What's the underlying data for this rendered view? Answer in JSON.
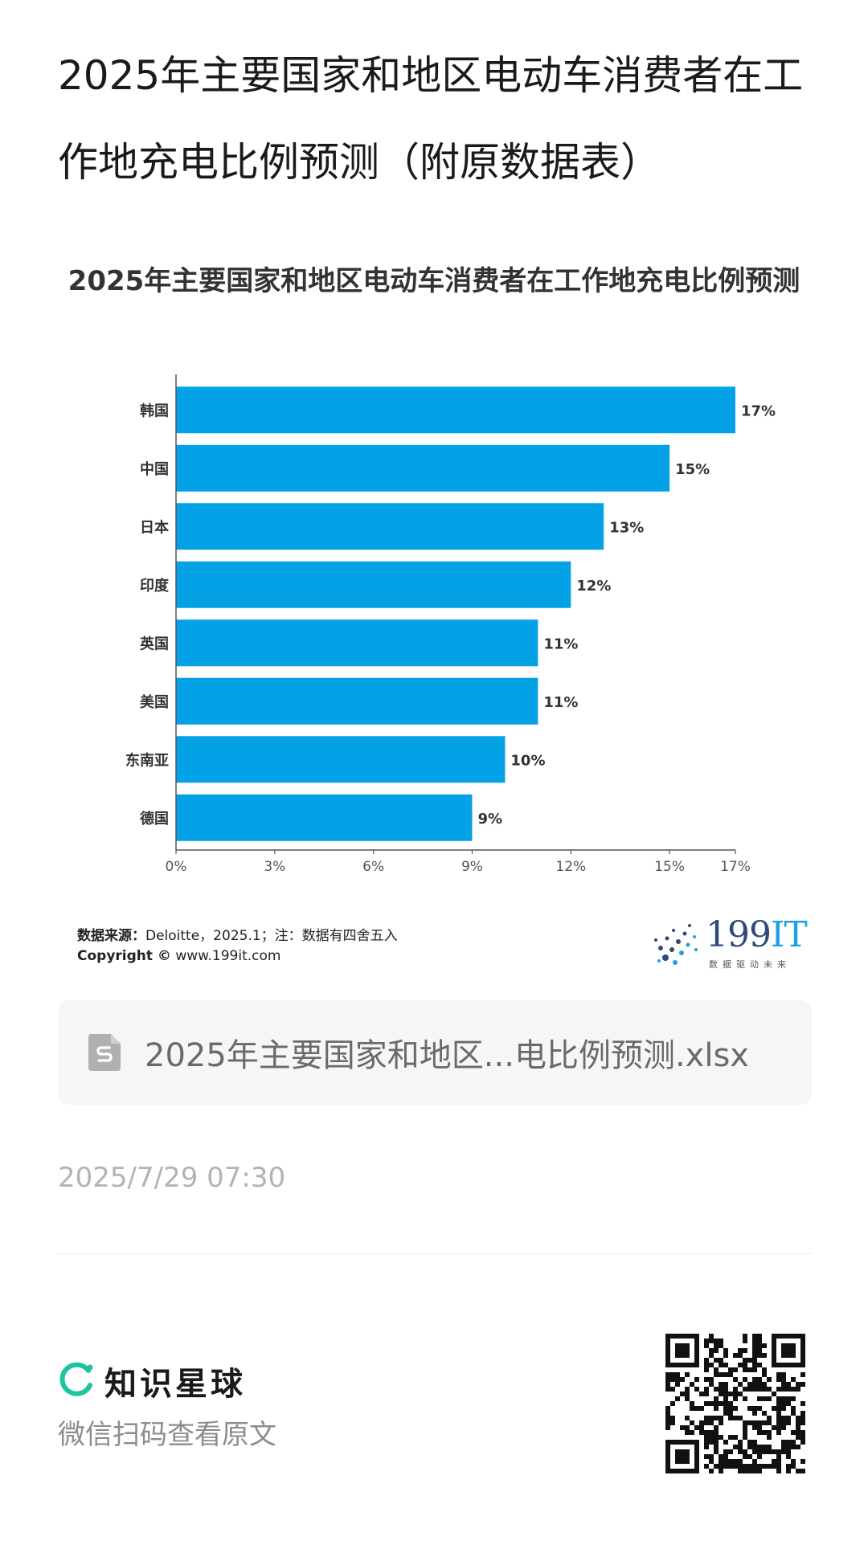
{
  "page": {
    "title": "2025年主要国家和地区电动车消费者在工作地充电比例预测（附原数据表）"
  },
  "chart_data": {
    "type": "bar",
    "orientation": "horizontal",
    "title": "2025年主要国家和地区电动车消费者在工作地充电比例预测",
    "categories": [
      "韩国",
      "中国",
      "日本",
      "印度",
      "英国",
      "美国",
      "东南亚",
      "德国"
    ],
    "values": [
      17,
      15,
      13,
      12,
      11,
      11,
      10,
      9
    ],
    "value_labels": [
      "17%",
      "15%",
      "13%",
      "12%",
      "11%",
      "11%",
      "10%",
      "9%"
    ],
    "x_ticks": [
      0,
      3,
      6,
      9,
      12,
      15,
      17
    ],
    "x_tick_labels": [
      "0%",
      "3%",
      "6%",
      "9%",
      "12%",
      "15%",
      "17%"
    ],
    "xlim": [
      0,
      17
    ],
    "xlabel": "",
    "ylabel": "",
    "bar_color": "#03a1e6",
    "grid": false,
    "legend": "none"
  },
  "source": {
    "label": "数据来源：",
    "text": "Deloitte，2025.1；注：数据有四舍五入",
    "copyright_label": "Copyright ©",
    "copyright_text": "www.199it.com"
  },
  "brand_199": {
    "number": "199",
    "suffix": "IT",
    "tagline": "数据驱动未来"
  },
  "attachment": {
    "file_name": "2025年主要国家和地区...电比例预测.xlsx",
    "icon": "spreadsheet-file-icon"
  },
  "post": {
    "date": "2025/7/29 07:30"
  },
  "footer": {
    "brand_name": "知识星球",
    "scan_hint": "微信扫码查看原文",
    "logo_color": "#1ec3a0"
  }
}
